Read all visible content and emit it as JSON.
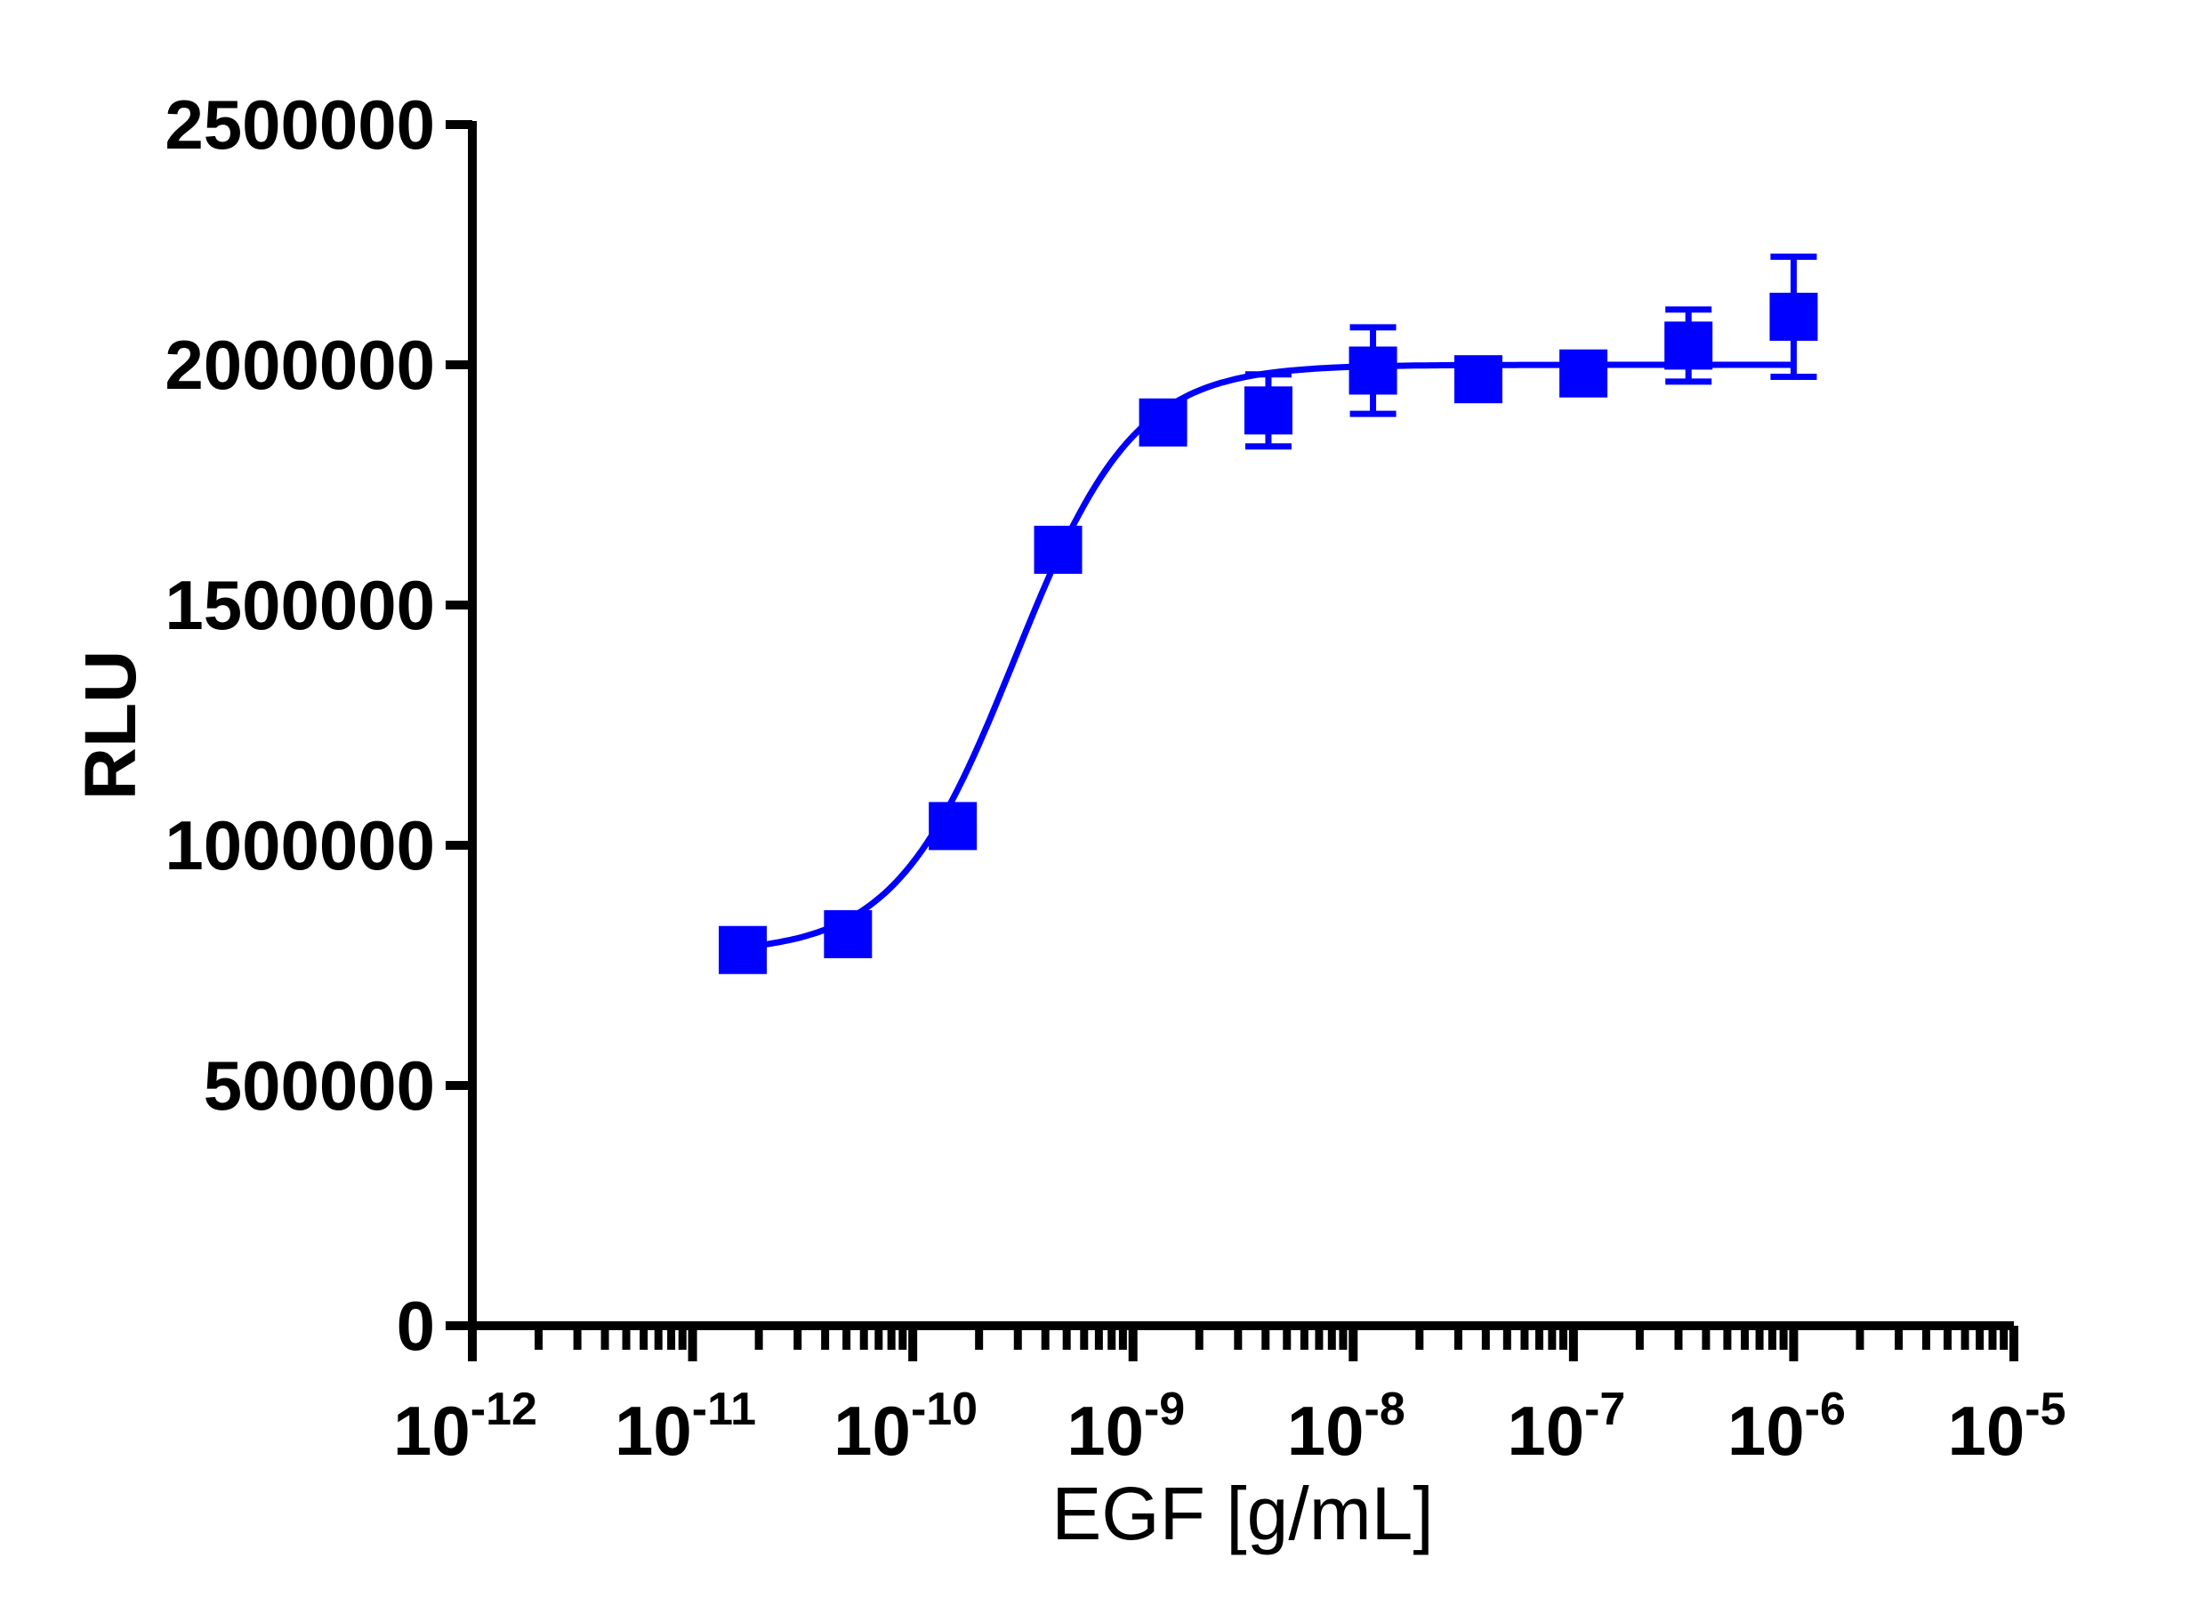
{
  "chart_data": {
    "type": "scatter",
    "xlabel": "EGF [g/mL]",
    "ylabel": "RLU",
    "xscale": "log",
    "xlim": [
      1e-12,
      1e-05
    ],
    "ylim": [
      0,
      2500000
    ],
    "grid": false,
    "legend": "none",
    "color": "#0000FF",
    "x_ticks": [
      {
        "base": "10",
        "exp": "-12"
      },
      {
        "base": "10",
        "exp": "-11"
      },
      {
        "base": "10",
        "exp": "-10"
      },
      {
        "base": "10",
        "exp": "-9"
      },
      {
        "base": "10",
        "exp": "-8"
      },
      {
        "base": "10",
        "exp": "-7"
      },
      {
        "base": "10",
        "exp": "-6"
      },
      {
        "base": "10",
        "exp": "-5"
      }
    ],
    "y_ticks": [
      "0",
      "500000",
      "1000000",
      "1500000",
      "2000000",
      "2500000"
    ],
    "series": [
      {
        "marker": "square",
        "x": [
          1.69e-11,
          5.08e-11,
          1.52e-10,
          4.57e-10,
          1.37e-09,
          4.12e-09,
          1.23e-08,
          3.7e-08,
          1.11e-07,
          3.33e-07,
          1e-06
        ],
        "y": [
          782000,
          815000,
          1040000,
          1615000,
          1880000,
          1905000,
          1988000,
          1970000,
          1982000,
          2040000,
          2100000
        ],
        "error": [
          10000,
          10000,
          10000,
          20000,
          10000,
          75000,
          90000,
          40000,
          30000,
          75000,
          125000
        ]
      }
    ],
    "fit": {
      "model": "4PL",
      "bottom": 775000,
      "top": 2000000,
      "ec50": 2.9e-10,
      "hill": 1.6
    }
  }
}
